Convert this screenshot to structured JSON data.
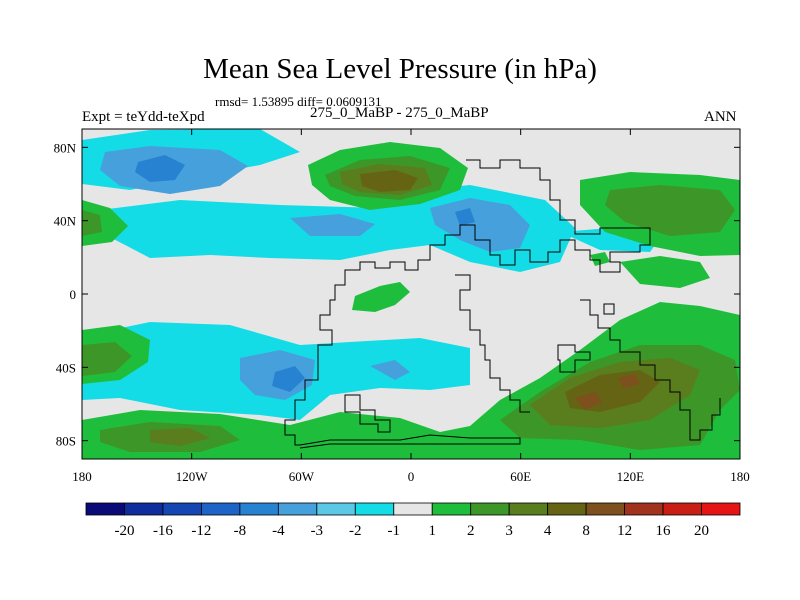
{
  "chart_data": {
    "type": "heatmap",
    "title": "Mean Sea Level Pressure (in hPa)",
    "stats_text": "rmsd= 1.53895 diff= 0.0609131",
    "experiment_label": "Expt = teYdd-teXpd",
    "comparison_label": "275_0_MaBP - 275_0_MaBP",
    "season_label": "ANN",
    "xlim": [
      -180,
      180
    ],
    "ylim": [
      -90,
      90
    ],
    "x_ticks": [
      {
        "value": -180,
        "label": "180"
      },
      {
        "value": -120,
        "label": "120W"
      },
      {
        "value": -60,
        "label": "60W"
      },
      {
        "value": 0,
        "label": "0"
      },
      {
        "value": 60,
        "label": "60E"
      },
      {
        "value": 120,
        "label": "120E"
      },
      {
        "value": 180,
        "label": "180"
      }
    ],
    "y_ticks": [
      {
        "value": 80,
        "label": "80N"
      },
      {
        "value": 40,
        "label": "40N"
      },
      {
        "value": 0,
        "label": "0"
      },
      {
        "value": -40,
        "label": "40S"
      },
      {
        "value": -80,
        "label": "80S"
      }
    ],
    "colorbar": {
      "levels": [
        "-20",
        "-16",
        "-12",
        "-8",
        "-4",
        "-3",
        "-2",
        "-1",
        "1",
        "2",
        "3",
        "4",
        "8",
        "12",
        "16",
        "20"
      ],
      "colors": [
        "#0a0a78",
        "#0f2d9c",
        "#1446b4",
        "#1e64c8",
        "#2882d2",
        "#46a0dc",
        "#5ac8e6",
        "#14dce6",
        "#e6e6e6",
        "#1ebe3c",
        "#3c9628",
        "#5a7d1e",
        "#646414",
        "#7d501e",
        "#a0321e",
        "#c81e14",
        "#e61414"
      ]
    }
  }
}
